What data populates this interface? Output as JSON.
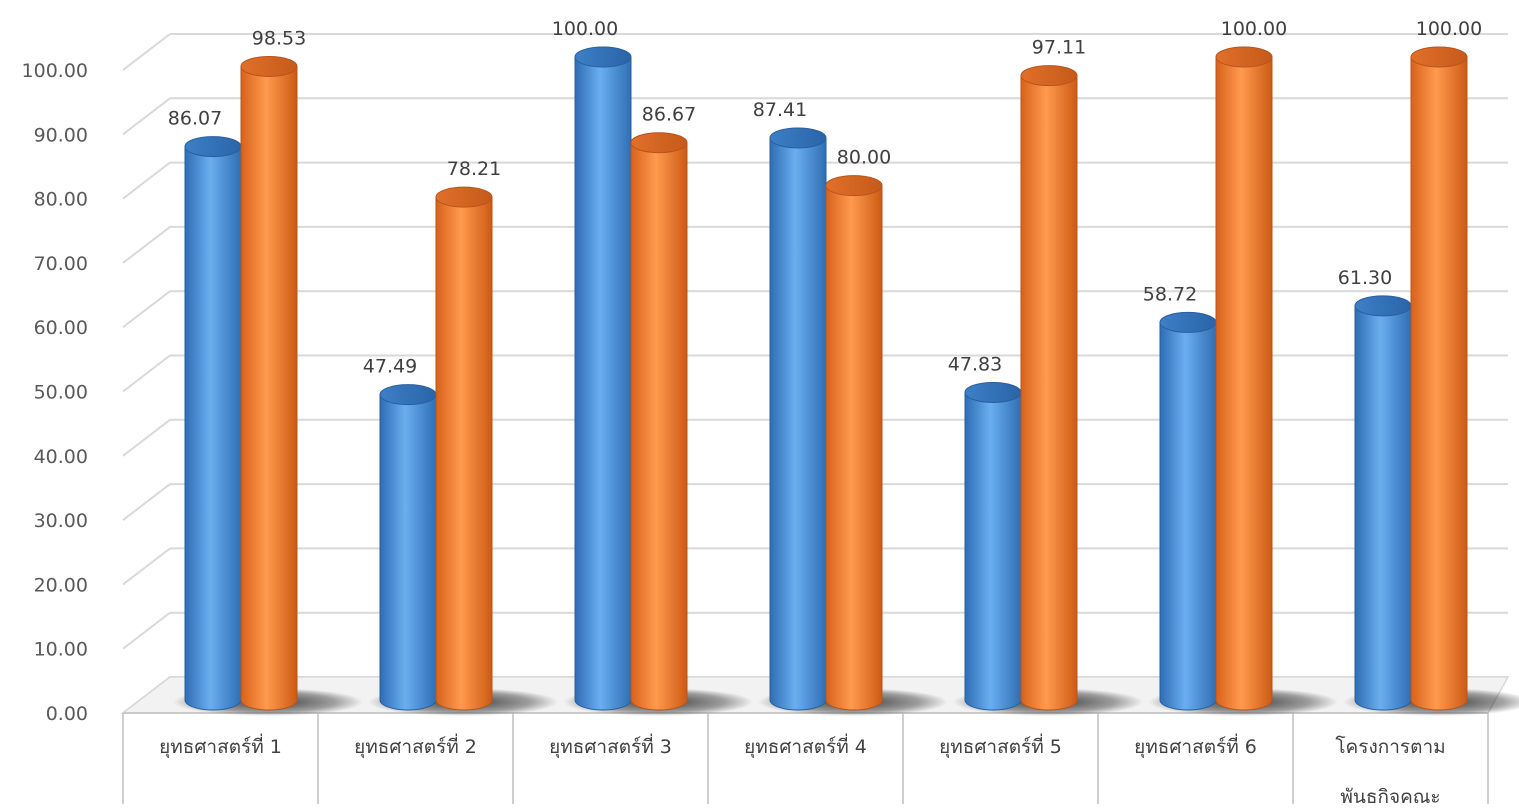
{
  "chart_data": {
    "type": "bar",
    "style": "3d-cylinder",
    "categories": [
      [
        "ยุทธศาสตร์ที่ 1"
      ],
      [
        "ยุทธศาสตร์ที่ 2"
      ],
      [
        "ยุทธศาสตร์ที่ 3"
      ],
      [
        "ยุทธศาสตร์ที่ 4"
      ],
      [
        "ยุทธศาสตร์ที่ 5"
      ],
      [
        "ยุทธศาสตร์ที่ 6"
      ],
      [
        "โครงการตาม",
        "พันธกิจคณะ"
      ]
    ],
    "series": [
      {
        "color": "#5b9bd5",
        "values": [
          86.07,
          47.49,
          100.0,
          87.41,
          47.83,
          58.72,
          61.3
        ],
        "labels": [
          "86.07",
          "47.49",
          "100.00",
          "87.41",
          "47.83",
          "58.72",
          "61.30"
        ]
      },
      {
        "color": "#ed7d31",
        "values": [
          98.53,
          78.21,
          86.67,
          80.0,
          97.11,
          100.0,
          100.0
        ],
        "labels": [
          "98.53",
          "78.21",
          "86.67",
          "80.00",
          "97.11",
          "100.00",
          "100.00"
        ]
      }
    ],
    "y_ticks": [
      "0.00",
      "10.00",
      "20.00",
      "30.00",
      "40.00",
      "50.00",
      "60.00",
      "70.00",
      "80.00",
      "90.00",
      "100.00"
    ],
    "ylim": [
      0,
      100
    ],
    "grid": true,
    "legend": "none"
  }
}
